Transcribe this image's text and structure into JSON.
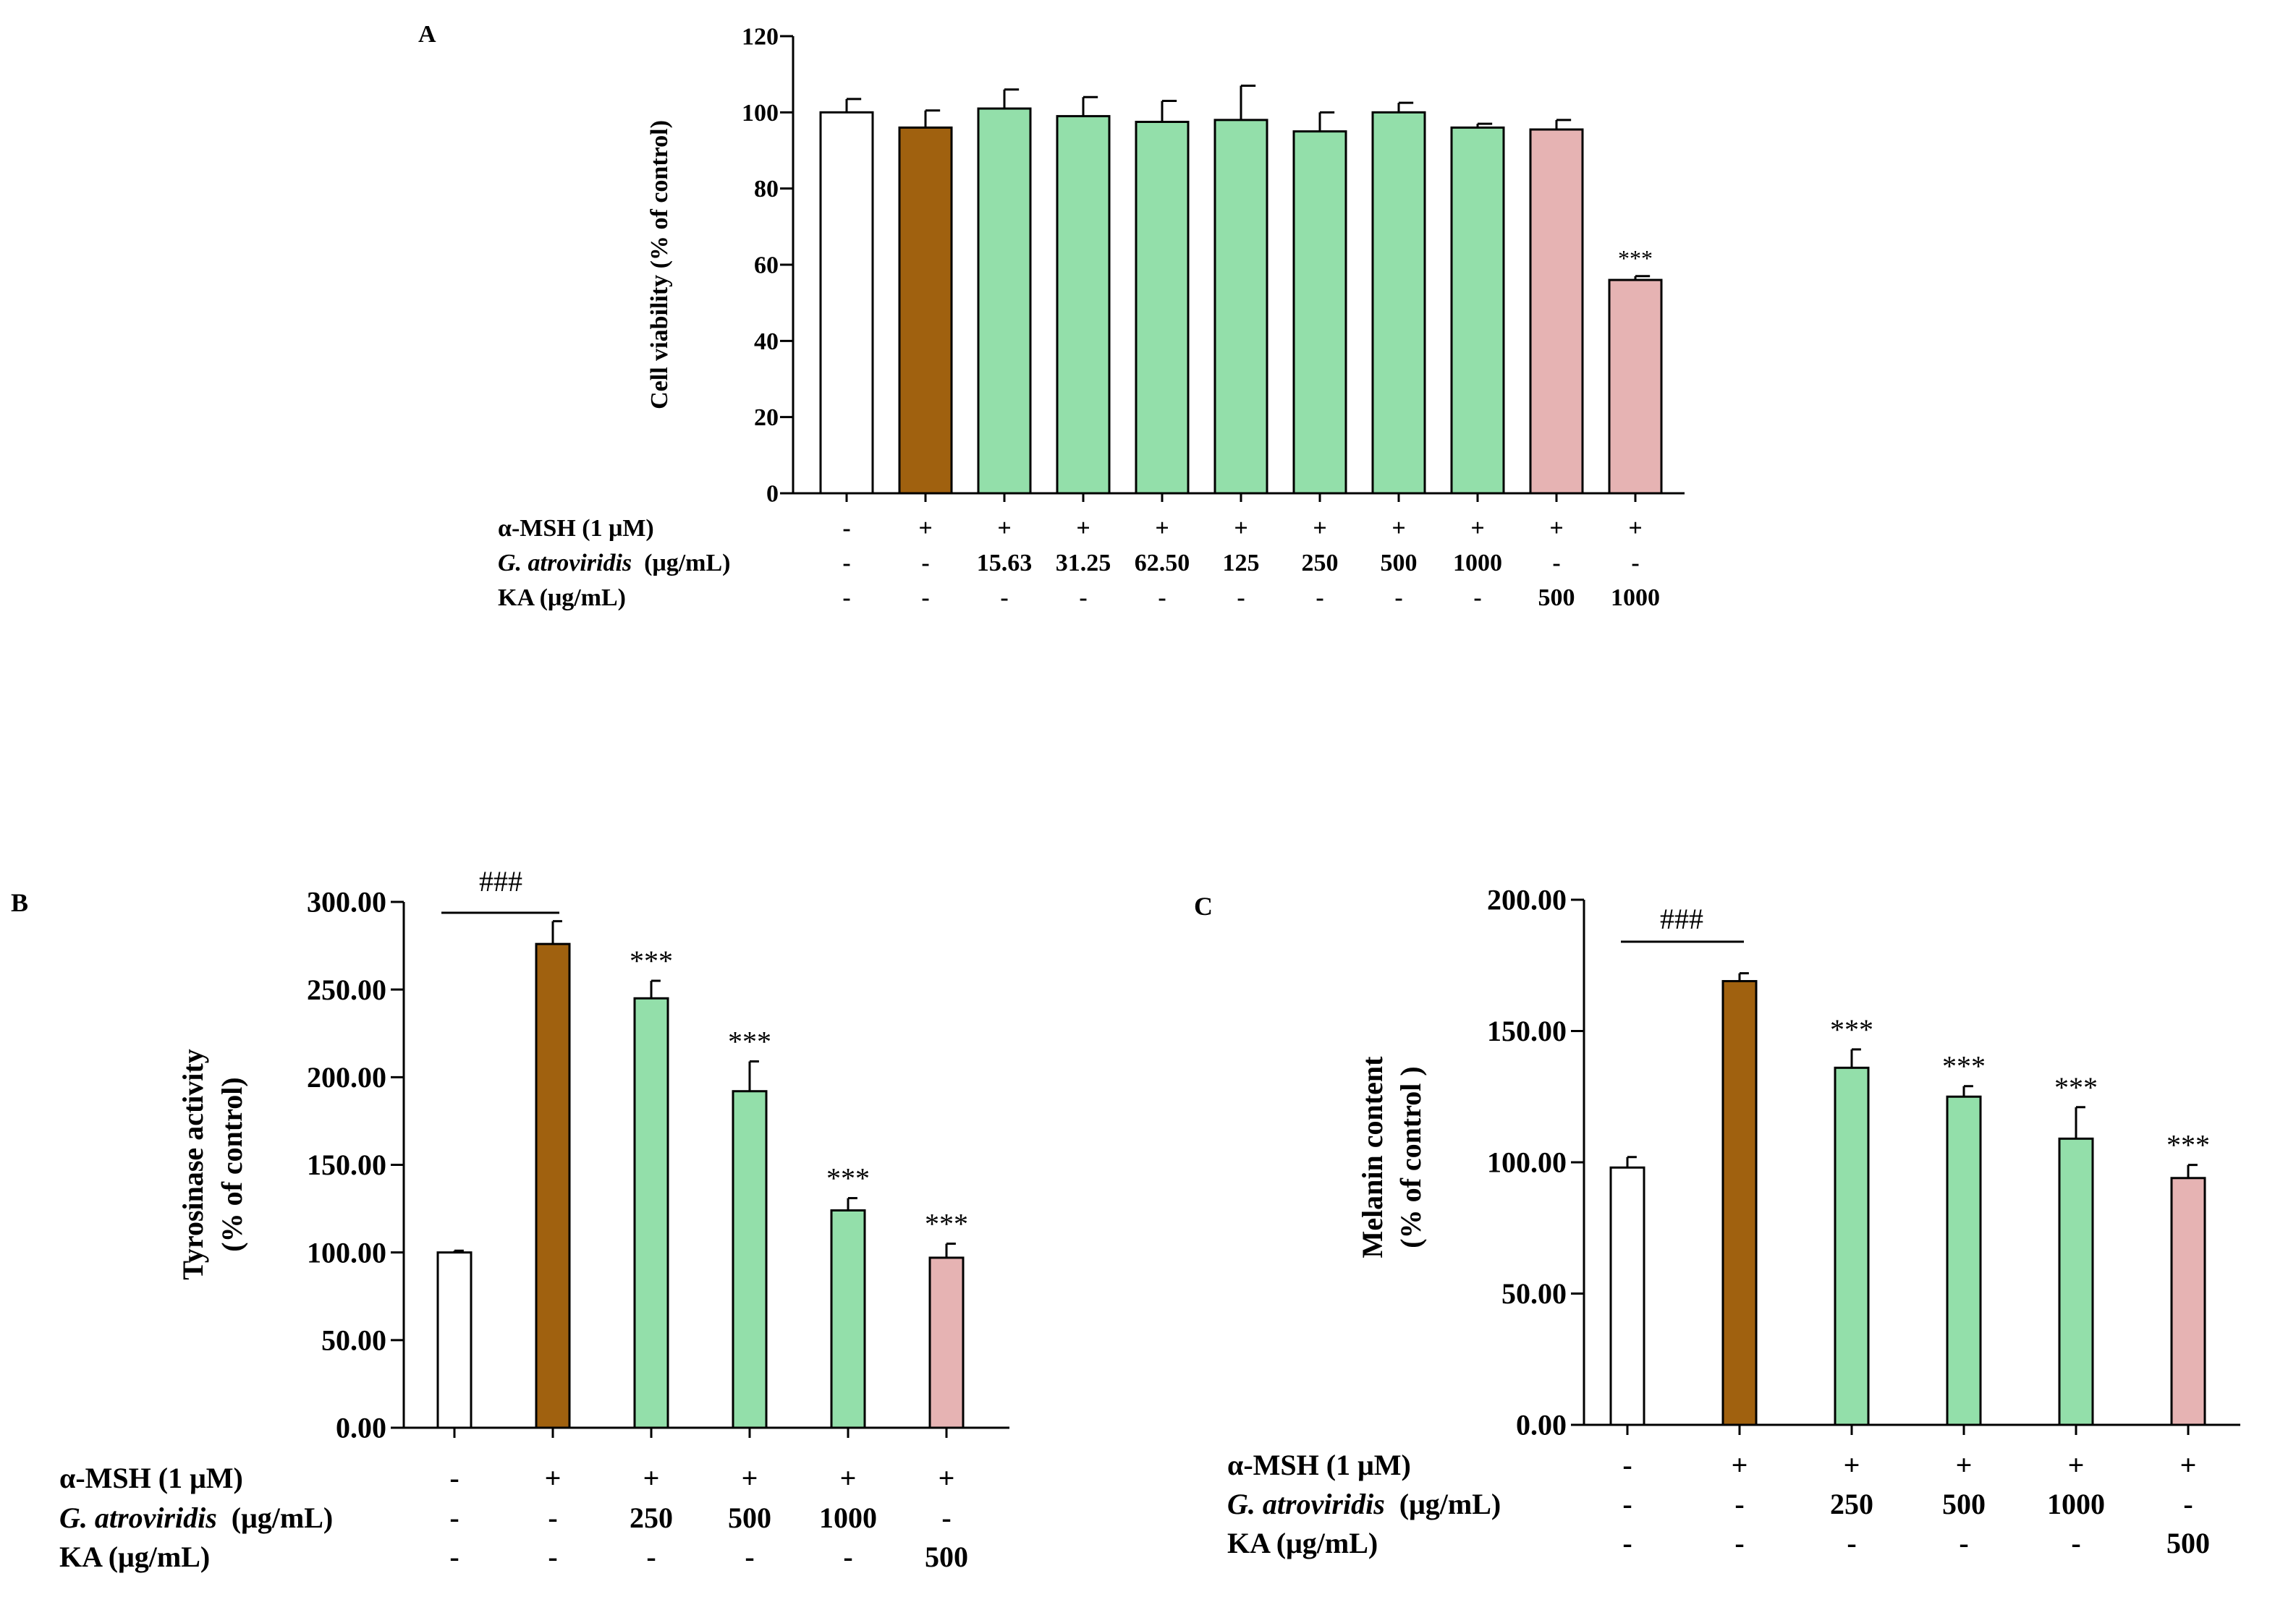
{
  "colors": {
    "control": "#ffffff",
    "msh": "#a0610f",
    "extract": "#93dfaa",
    "ka": "#e6b3b3"
  },
  "chart_data": [
    {
      "panel": "A",
      "type": "bar",
      "ylabel": "Cell viability (% of control)",
      "ylim": [
        0,
        120
      ],
      "yticks": [
        "0",
        "20",
        "40",
        "60",
        "80",
        "100",
        "120"
      ],
      "ytick_values": [
        0,
        20,
        40,
        60,
        80,
        100,
        120
      ],
      "values": [
        100,
        96,
        101,
        99,
        97.5,
        98,
        95,
        100,
        96,
        95.5,
        56
      ],
      "errors": [
        3.5,
        4.5,
        5,
        5,
        5.5,
        9,
        5,
        2.5,
        1,
        2.5,
        1
      ],
      "colors": [
        "control",
        "msh",
        "extract",
        "extract",
        "extract",
        "extract",
        "extract",
        "extract",
        "extract",
        "ka",
        "ka"
      ],
      "sig": [
        "",
        "",
        "",
        "",
        "",
        "",
        "",
        "",
        "",
        "",
        "***"
      ],
      "rows": [
        {
          "label": "α-MSH (1 μM)",
          "values": [
            "-",
            "+",
            "+",
            "+",
            "+",
            "+",
            "+",
            "+",
            "+",
            "+",
            "+"
          ]
        },
        {
          "label_italic": "G. atroviridis",
          "label_rest": "(μg/mL)",
          "values": [
            "-",
            "-",
            "15.63",
            "31.25",
            "62.50",
            "125",
            "250",
            "500",
            "1000",
            "-",
            "-"
          ]
        },
        {
          "label": "KA (μg/mL)",
          "values": [
            "-",
            "-",
            "-",
            "-",
            "-",
            "-",
            "-",
            "-",
            "-",
            "500",
            "1000"
          ]
        }
      ],
      "hash_label": ""
    },
    {
      "panel": "B",
      "type": "bar",
      "ylabel": "Tyrosinase activity",
      "ylabel2": "(% of control)",
      "ylim": [
        0,
        300
      ],
      "yticks": [
        "0.00",
        "50.00",
        "100.00",
        "150.00",
        "200.00",
        "250.00",
        "300.00"
      ],
      "ytick_values": [
        0,
        50,
        100,
        150,
        200,
        250,
        300
      ],
      "values": [
        100,
        276,
        245,
        192,
        124,
        97
      ],
      "errors": [
        1,
        13,
        10,
        17,
        7,
        8
      ],
      "colors": [
        "control",
        "msh",
        "extract",
        "extract",
        "extract",
        "ka"
      ],
      "sig": [
        "",
        "",
        "***",
        "***",
        "***",
        "***"
      ],
      "rows": [
        {
          "label": "α-MSH (1 μM)",
          "values": [
            "-",
            "+",
            "+",
            "+",
            "+",
            "+"
          ]
        },
        {
          "label_italic": "G. atroviridis",
          "label_rest": "(μg/mL)",
          "values": [
            "-",
            "-",
            "250",
            "500",
            "1000",
            "-"
          ]
        },
        {
          "label": "KA (μg/mL)",
          "values": [
            "-",
            "-",
            "-",
            "-",
            "-",
            "500"
          ]
        }
      ],
      "hash_label": "###"
    },
    {
      "panel": "C",
      "type": "bar",
      "ylabel": "Melanin content",
      "ylabel2": "(% of control )",
      "ylim": [
        0,
        200
      ],
      "yticks": [
        "0.00",
        "50.00",
        "100.00",
        "150.00",
        "200.00"
      ],
      "ytick_values": [
        0,
        50,
        100,
        150,
        200
      ],
      "values": [
        98,
        169,
        136,
        125,
        109,
        94
      ],
      "errors": [
        4,
        3,
        7,
        4,
        12,
        5
      ],
      "colors": [
        "control",
        "msh",
        "extract",
        "extract",
        "extract",
        "ka"
      ],
      "sig": [
        "",
        "",
        "***",
        "***",
        "***",
        "***"
      ],
      "rows": [
        {
          "label": "α-MSH (1 μM)",
          "values": [
            "-",
            "+",
            "+",
            "+",
            "+",
            "+"
          ]
        },
        {
          "label_italic": "G. atroviridis",
          "label_rest": "(μg/mL)",
          "values": [
            "-",
            "-",
            "250",
            "500",
            "1000",
            "-"
          ]
        },
        {
          "label": "KA (μg/mL)",
          "values": [
            "-",
            "-",
            "-",
            "-",
            "-",
            "500"
          ]
        }
      ],
      "hash_label": "###"
    }
  ]
}
